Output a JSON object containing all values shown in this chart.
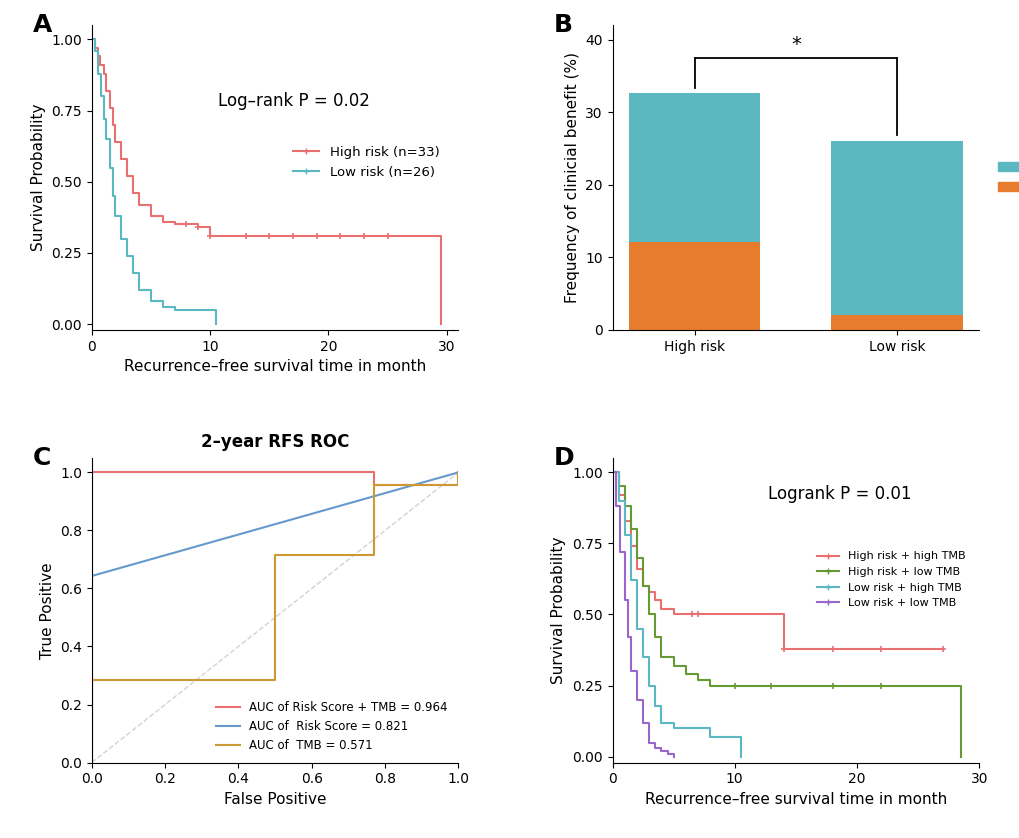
{
  "panel_A": {
    "title": "Log–rank P = 0.02",
    "xlabel": "Recurrence–free survival time in month",
    "ylabel": "Survival Probability",
    "xlim": [
      0,
      31
    ],
    "ylim": [
      -0.02,
      1.05
    ],
    "xticks": [
      0,
      10,
      20,
      30
    ],
    "yticks": [
      0.0,
      0.25,
      0.5,
      0.75,
      1.0
    ],
    "high_risk": {
      "label": "High risk (n=33)",
      "color": "#E87070",
      "times": [
        0,
        0.3,
        0.5,
        0.7,
        1.0,
        1.2,
        1.5,
        1.8,
        2.0,
        2.5,
        3.0,
        3.5,
        4.0,
        5.0,
        6.0,
        7.0,
        8.0,
        9.0,
        10.0,
        11.0,
        12.0,
        13.0,
        15.0,
        17.0,
        19.0,
        21.0,
        23.0,
        25.0,
        27.0,
        29.5
      ],
      "surv": [
        1.0,
        0.97,
        0.94,
        0.91,
        0.88,
        0.82,
        0.76,
        0.7,
        0.64,
        0.58,
        0.52,
        0.46,
        0.42,
        0.38,
        0.36,
        0.35,
        0.35,
        0.34,
        0.31,
        0.31,
        0.31,
        0.31,
        0.31,
        0.31,
        0.31,
        0.31,
        0.31,
        0.31,
        0.31,
        0.0
      ],
      "censor_times": [
        8.0,
        9.0,
        10.0,
        13.0,
        15.0,
        17.0,
        19.0,
        21.0,
        23.0,
        25.0
      ],
      "censor_surv": [
        0.35,
        0.34,
        0.31,
        0.31,
        0.31,
        0.31,
        0.31,
        0.31,
        0.31,
        0.31
      ]
    },
    "low_risk": {
      "label": "Low risk (n=26)",
      "color": "#5BB8C1",
      "times": [
        0,
        0.3,
        0.5,
        0.8,
        1.0,
        1.2,
        1.5,
        1.8,
        2.0,
        2.5,
        3.0,
        3.5,
        4.0,
        5.0,
        6.0,
        7.0,
        8.0,
        9.0,
        10.0,
        10.5
      ],
      "surv": [
        1.0,
        0.96,
        0.88,
        0.8,
        0.72,
        0.65,
        0.55,
        0.45,
        0.38,
        0.3,
        0.24,
        0.18,
        0.12,
        0.08,
        0.06,
        0.05,
        0.05,
        0.05,
        0.05,
        0.0
      ],
      "censor_times": [],
      "censor_surv": []
    }
  },
  "panel_B": {
    "ylabel": "Frequency of clinicial benefit (%)",
    "ylim": [
      0,
      42
    ],
    "yticks": [
      0,
      10,
      20,
      30,
      40
    ],
    "categories": [
      "High risk",
      "Low risk"
    ],
    "DCB_values": [
      12.1,
      2.0
    ],
    "NDB_values": [
      20.5,
      24.0
    ],
    "DCB_color": "#E87C2E",
    "NDB_color": "#5BB8C1",
    "significance": "*",
    "bar_width": 0.65
  },
  "panel_C": {
    "title": "2–year RFS ROC",
    "xlabel": "False Positive",
    "ylabel": "True Positive",
    "xlim": [
      0,
      1
    ],
    "ylim": [
      0,
      1.05
    ],
    "xticks": [
      0.0,
      0.2,
      0.4,
      0.6,
      0.8,
      1.0
    ],
    "yticks": [
      0.0,
      0.2,
      0.4,
      0.6,
      0.8,
      1.0
    ],
    "risk_score_tmb": {
      "label": "AUC of Risk Score + TMB = 0.964",
      "color": "#E87070",
      "x": [
        0.0,
        0.0,
        0.77,
        0.77,
        1.0,
        1.0
      ],
      "y": [
        0.0,
        1.0,
        1.0,
        0.955,
        0.955,
        1.0
      ]
    },
    "risk_score": {
      "label": "AUC of  Risk Score = 0.821",
      "color": "#6699CC",
      "x": [
        0.0,
        1.0
      ],
      "y": [
        0.643,
        1.0
      ]
    },
    "tmb": {
      "label": "AUC of  TMB = 0.571",
      "color": "#CC9933",
      "x": [
        0.0,
        0.0,
        0.5,
        0.5,
        0.77,
        0.77,
        1.0,
        1.0
      ],
      "y": [
        0.0,
        0.286,
        0.286,
        0.714,
        0.714,
        0.955,
        0.955,
        1.0
      ]
    }
  },
  "panel_D": {
    "title": "Logrank P = 0.01",
    "xlabel": "Recurrence–free survival time in month",
    "ylabel": "Survival Probability",
    "xlim": [
      0,
      30
    ],
    "ylim": [
      -0.02,
      1.05
    ],
    "xticks": [
      0,
      10,
      20,
      30
    ],
    "yticks": [
      0.0,
      0.25,
      0.5,
      0.75,
      1.0
    ],
    "high_high": {
      "label": "High risk + high TMB",
      "color": "#E87070",
      "times": [
        0,
        0.5,
        1.0,
        1.5,
        2.0,
        2.5,
        3.0,
        3.5,
        4.0,
        5.0,
        6.5,
        7.0,
        8.0,
        10.0,
        14.0,
        18.0,
        22.0,
        27.0
      ],
      "surv": [
        1.0,
        0.92,
        0.83,
        0.74,
        0.66,
        0.6,
        0.58,
        0.55,
        0.52,
        0.5,
        0.5,
        0.5,
        0.5,
        0.5,
        0.38,
        0.38,
        0.38,
        0.38
      ],
      "censor_times": [
        6.5,
        7.0,
        14.0,
        18.0,
        22.0,
        27.0
      ],
      "censor_surv": [
        0.5,
        0.5,
        0.38,
        0.38,
        0.38,
        0.38
      ]
    },
    "high_low": {
      "label": "High risk + low TMB",
      "color": "#669933",
      "times": [
        0,
        0.5,
        1.0,
        1.5,
        2.0,
        2.5,
        3.0,
        3.5,
        4.0,
        5.0,
        6.0,
        7.0,
        8.0,
        10.0,
        13.0,
        18.0,
        22.0,
        28.5
      ],
      "surv": [
        1.0,
        0.95,
        0.88,
        0.8,
        0.7,
        0.6,
        0.5,
        0.42,
        0.35,
        0.32,
        0.29,
        0.27,
        0.25,
        0.25,
        0.25,
        0.25,
        0.25,
        0.0
      ],
      "censor_times": [
        10.0,
        13.0,
        18.0,
        22.0
      ],
      "censor_surv": [
        0.25,
        0.25,
        0.25,
        0.25
      ]
    },
    "low_high": {
      "label": "Low risk + high TMB",
      "color": "#5BB8C1",
      "times": [
        0,
        0.5,
        1.0,
        1.5,
        2.0,
        2.5,
        3.0,
        3.5,
        4.0,
        5.0,
        6.0,
        7.0,
        8.0,
        9.0,
        10.0,
        10.5
      ],
      "surv": [
        1.0,
        0.9,
        0.78,
        0.62,
        0.45,
        0.35,
        0.25,
        0.18,
        0.12,
        0.1,
        0.1,
        0.1,
        0.07,
        0.07,
        0.07,
        0.0
      ],
      "censor_times": [],
      "censor_surv": []
    },
    "low_low": {
      "label": "Low risk + low TMB",
      "color": "#9966CC",
      "times": [
        0,
        0.3,
        0.6,
        1.0,
        1.3,
        1.5,
        2.0,
        2.5,
        3.0,
        3.5,
        4.0,
        4.5,
        5.0
      ],
      "surv": [
        1.0,
        0.88,
        0.72,
        0.55,
        0.42,
        0.3,
        0.2,
        0.12,
        0.05,
        0.03,
        0.02,
        0.01,
        0.0
      ],
      "censor_times": [],
      "censor_surv": []
    }
  },
  "background_color": "#ffffff",
  "panel_label_fontsize": 18,
  "axis_label_fontsize": 11,
  "tick_fontsize": 10,
  "legend_fontsize": 9.5,
  "title_fontsize": 12
}
